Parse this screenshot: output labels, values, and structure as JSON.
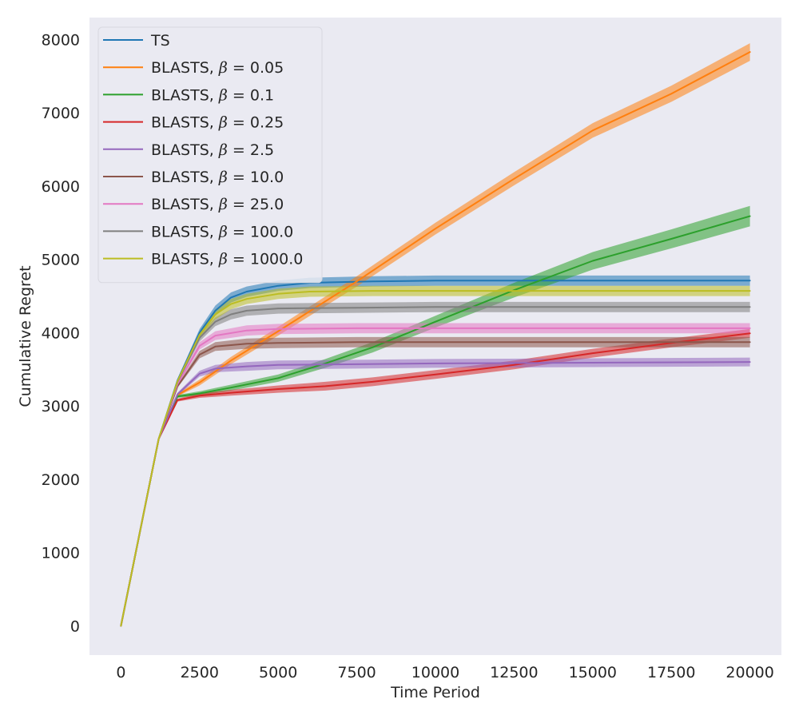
{
  "chart_data": {
    "type": "line",
    "xlabel": "Time Period",
    "ylabel": "Cumulative Regret",
    "xlim": [
      -1000,
      21000
    ],
    "ylim": [
      -400,
      8300
    ],
    "xticks": [
      0,
      2500,
      5000,
      7500,
      10000,
      12500,
      15000,
      17500,
      20000
    ],
    "yticks": [
      0,
      1000,
      2000,
      3000,
      4000,
      5000,
      6000,
      7000,
      8000
    ],
    "grid": false,
    "background": "#eaeaf2",
    "legend_position": "top-left",
    "series": [
      {
        "name": "TS",
        "legend_suffix": "",
        "color": "#1f77b4",
        "x": [
          0,
          1200,
          1800,
          2500,
          3000,
          3500,
          4000,
          5000,
          6000,
          8000,
          10000,
          15000,
          20000
        ],
        "y": [
          0,
          2550,
          3350,
          4000,
          4300,
          4480,
          4560,
          4640,
          4680,
          4700,
          4710,
          4710,
          4710
        ],
        "band": [
          0,
          0,
          20,
          50,
          70,
          70,
          70,
          70,
          70,
          70,
          70,
          70,
          70
        ]
      },
      {
        "name": "BLASTS, ",
        "legend_suffix": "0.05",
        "color": "#ff7f0e",
        "x": [
          0,
          1200,
          1800,
          2500,
          3500,
          5000,
          7500,
          10000,
          12500,
          15000,
          17500,
          20000
        ],
        "y": [
          0,
          2550,
          3150,
          3320,
          3620,
          4020,
          4700,
          5420,
          6100,
          6760,
          7260,
          7830
        ],
        "band": [
          0,
          0,
          20,
          40,
          50,
          60,
          70,
          80,
          90,
          100,
          110,
          120
        ]
      },
      {
        "name": "BLASTS, ",
        "legend_suffix": "0.1",
        "color": "#2ca02c",
        "x": [
          0,
          1200,
          1800,
          2500,
          3500,
          5000,
          6500,
          8000,
          10000,
          12500,
          15000,
          17500,
          20000
        ],
        "y": [
          0,
          2550,
          3130,
          3170,
          3250,
          3380,
          3580,
          3800,
          4150,
          4580,
          4980,
          5280,
          5590
        ],
        "band": [
          0,
          0,
          20,
          30,
          40,
          50,
          60,
          70,
          80,
          100,
          120,
          130,
          140
        ]
      },
      {
        "name": "BLASTS, ",
        "legend_suffix": "0.25",
        "color": "#d62728",
        "x": [
          0,
          1200,
          1800,
          2500,
          3500,
          5000,
          6500,
          8000,
          10000,
          12500,
          15000,
          17500,
          20000
        ],
        "y": [
          0,
          2550,
          3080,
          3140,
          3180,
          3230,
          3270,
          3330,
          3430,
          3560,
          3720,
          3860,
          3990
        ],
        "band": [
          0,
          0,
          20,
          30,
          40,
          50,
          60,
          60,
          60,
          60,
          60,
          60,
          60
        ]
      },
      {
        "name": "BLASTS, ",
        "legend_suffix": "2.5",
        "color": "#9467bd",
        "x": [
          0,
          1200,
          1800,
          2500,
          3000,
          4000,
          5000,
          7500,
          10000,
          15000,
          20000
        ],
        "y": [
          0,
          2550,
          3160,
          3440,
          3510,
          3540,
          3560,
          3570,
          3580,
          3590,
          3600
        ],
        "band": [
          0,
          0,
          20,
          40,
          50,
          60,
          60,
          60,
          60,
          60,
          60
        ]
      },
      {
        "name": "BLASTS, ",
        "legend_suffix": "10.0",
        "color": "#8c564b",
        "x": [
          0,
          1200,
          1800,
          2500,
          3000,
          4000,
          5000,
          7500,
          10000,
          15000,
          20000
        ],
        "y": [
          0,
          2550,
          3270,
          3700,
          3810,
          3850,
          3860,
          3870,
          3870,
          3870,
          3870
        ],
        "band": [
          0,
          0,
          20,
          50,
          60,
          70,
          70,
          70,
          70,
          70,
          70
        ]
      },
      {
        "name": "BLASTS, ",
        "legend_suffix": "25.0",
        "color": "#e377c2",
        "x": [
          0,
          1200,
          1800,
          2500,
          3000,
          4000,
          5000,
          7500,
          10000,
          15000,
          20000
        ],
        "y": [
          0,
          2550,
          3300,
          3820,
          3960,
          4030,
          4050,
          4060,
          4060,
          4060,
          4060
        ],
        "band": [
          0,
          0,
          20,
          50,
          60,
          70,
          70,
          70,
          70,
          70,
          70
        ]
      },
      {
        "name": "BLASTS, ",
        "legend_suffix": "100.0",
        "color": "#7f7f7f",
        "x": [
          0,
          1200,
          1800,
          2500,
          3000,
          3500,
          4000,
          5000,
          7500,
          10000,
          15000,
          20000
        ],
        "y": [
          0,
          2550,
          3330,
          3930,
          4150,
          4250,
          4300,
          4330,
          4340,
          4350,
          4350,
          4350
        ],
        "band": [
          0,
          0,
          20,
          50,
          60,
          70,
          70,
          70,
          70,
          70,
          70,
          70
        ]
      },
      {
        "name": "BLASTS, ",
        "legend_suffix": "1000.0",
        "color": "#bcbd22",
        "x": [
          0,
          1200,
          1800,
          2500,
          3000,
          3500,
          4000,
          5000,
          6000,
          8000,
          10000,
          15000,
          20000
        ],
        "y": [
          0,
          2550,
          3340,
          3970,
          4250,
          4390,
          4460,
          4530,
          4560,
          4570,
          4570,
          4570,
          4570
        ],
        "band": [
          0,
          0,
          20,
          50,
          70,
          70,
          70,
          70,
          70,
          70,
          70,
          70,
          70
        ]
      }
    ]
  }
}
